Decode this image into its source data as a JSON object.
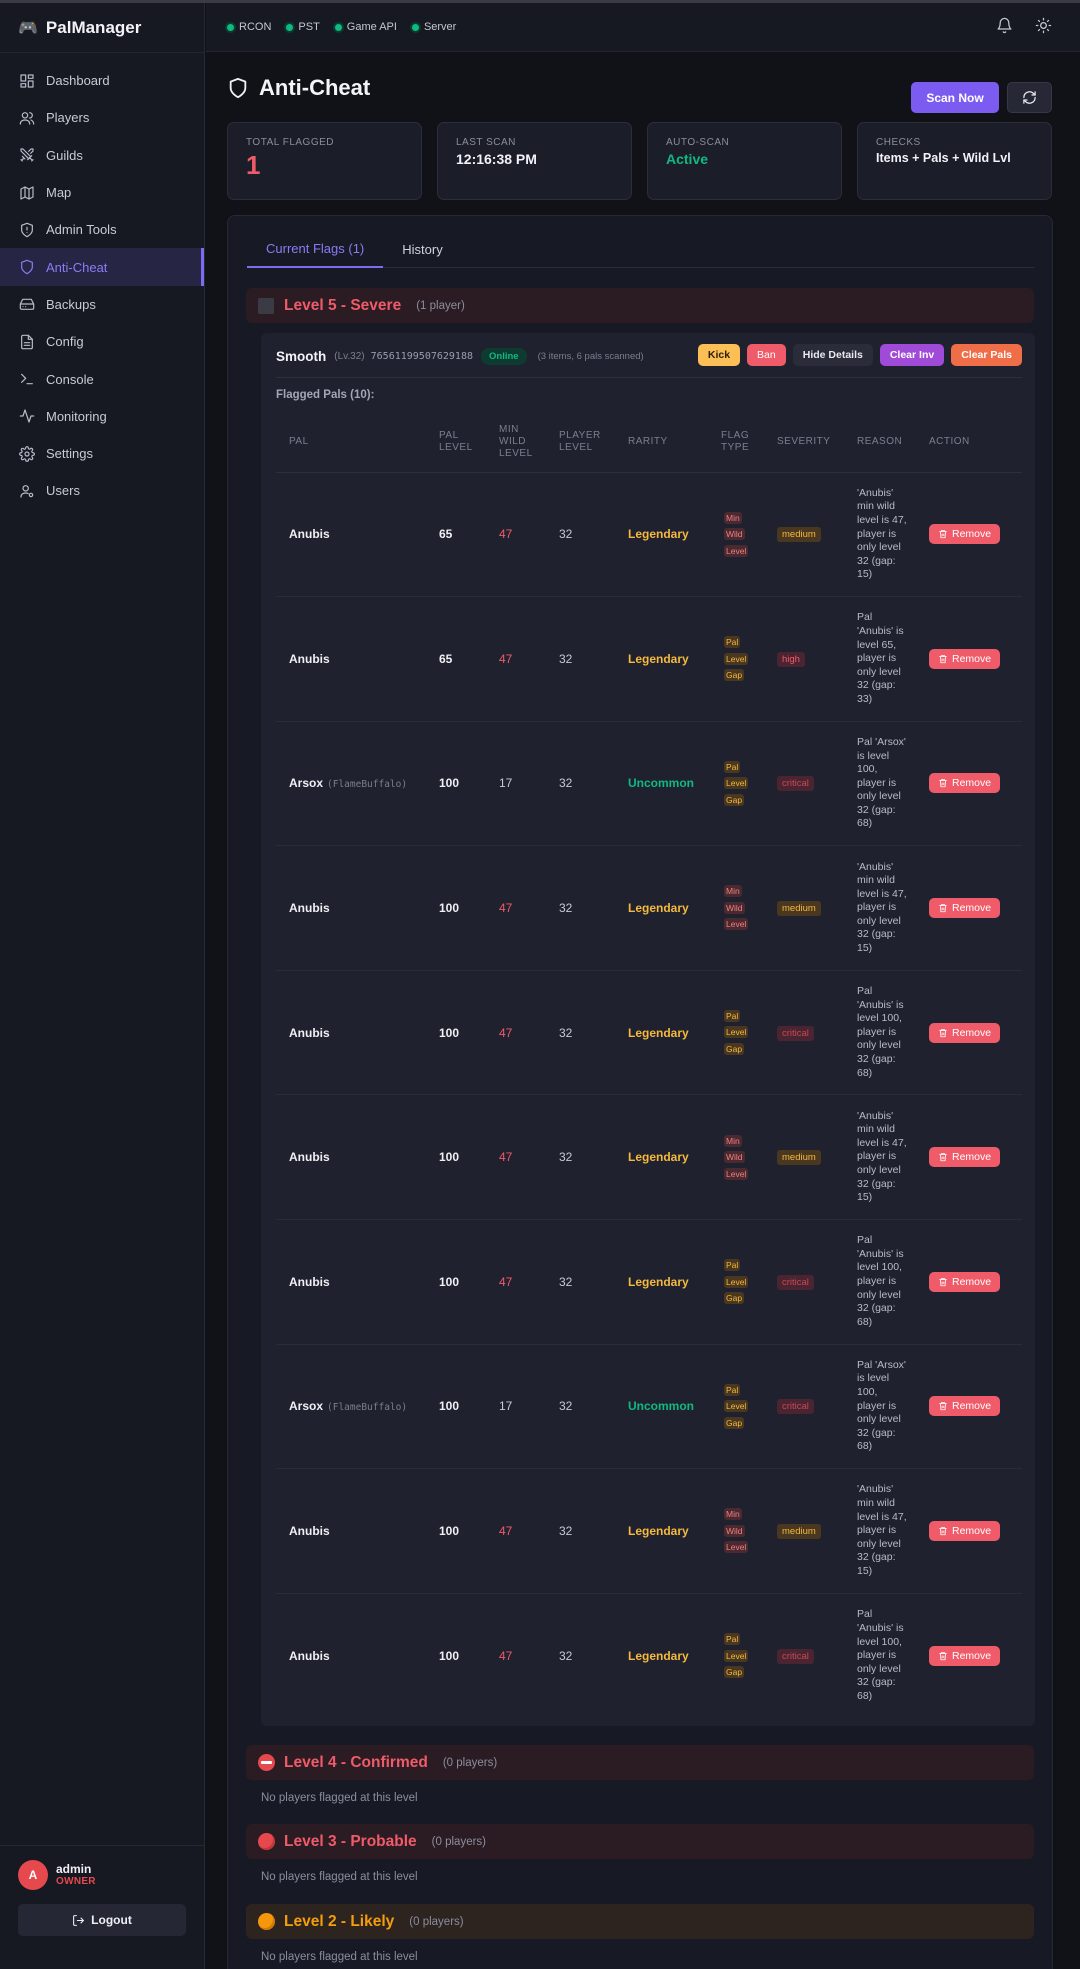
{
  "app": {
    "name": "PalManager"
  },
  "sidebar": {
    "items": [
      {
        "label": "Dashboard",
        "icon": "dashboard-icon"
      },
      {
        "label": "Players",
        "icon": "users-icon"
      },
      {
        "label": "Guilds",
        "icon": "swords-icon"
      },
      {
        "label": "Map",
        "icon": "map-icon"
      },
      {
        "label": "Admin Tools",
        "icon": "shield-icon"
      },
      {
        "label": "Anti-Cheat",
        "icon": "shield-icon",
        "active": true
      },
      {
        "label": "Backups",
        "icon": "drive-icon"
      },
      {
        "label": "Config",
        "icon": "file-icon"
      },
      {
        "label": "Console",
        "icon": "terminal-icon"
      },
      {
        "label": "Monitoring",
        "icon": "activity-icon"
      },
      {
        "label": "Settings",
        "icon": "gear-icon"
      },
      {
        "label": "Users",
        "icon": "user-cog-icon"
      }
    ],
    "user": {
      "initial": "A",
      "name": "admin",
      "role": "OWNER"
    },
    "logout_label": "Logout"
  },
  "topbar": {
    "statuses": [
      "RCON",
      "PST",
      "Game API",
      "Server"
    ]
  },
  "page": {
    "title": "Anti-Cheat",
    "scan_label": "Scan Now",
    "cards": [
      {
        "label": "Total Flagged",
        "value": "1"
      },
      {
        "label": "Last Scan",
        "value": "12:16:38 PM"
      },
      {
        "label": "Auto-Scan",
        "value": "Active"
      },
      {
        "label": "Checks",
        "value": "Items + Pals + Wild Lvl"
      }
    ],
    "tabs": [
      "Current Flags (1)",
      "History"
    ]
  },
  "levels": [
    {
      "title": "Level 5 - Severe",
      "count": "(1 player)"
    },
    {
      "title": "Level 4 - Confirmed",
      "count": "(0 players)",
      "empty": "No players flagged at this level"
    },
    {
      "title": "Level 3 - Probable",
      "count": "(0 players)",
      "empty": "No players flagged at this level"
    },
    {
      "title": "Level 2 - Likely",
      "count": "(0 players)",
      "empty": "No players flagged at this level"
    }
  ],
  "player": {
    "name": "Smooth",
    "level": "(Lv.32)",
    "steam_id": "76561199507629188",
    "status": "Online",
    "info": "(3 items, 6 pals scanned)",
    "buttons": {
      "kick": "Kick",
      "ban": "Ban",
      "hide": "Hide Details",
      "clear_inv": "Clear Inv",
      "clear_pals": "Clear Pals"
    },
    "flagged_label": "Flagged Pals (10):"
  },
  "table": {
    "headers": [
      "Pal",
      "Pal Level",
      "Min Wild Level",
      "Player Level",
      "Rarity",
      "Flag Type",
      "Severity",
      "Reason",
      "Action"
    ],
    "remove_label": "Remove",
    "rows": [
      {
        "pal": "Anubis",
        "alias": "",
        "pal_level": "65",
        "min_wild": "47",
        "player_level": "32",
        "rarity": "Legendary",
        "flag": [
          "Min",
          "Wild",
          "Level"
        ],
        "severity": "medium",
        "reason": "'Anubis' min wild level is 47, player is only level 32 (gap: 15)"
      },
      {
        "pal": "Anubis",
        "alias": "",
        "pal_level": "65",
        "min_wild": "47",
        "player_level": "32",
        "rarity": "Legendary",
        "flag": [
          "Pal",
          "Level",
          "Gap"
        ],
        "severity": "high",
        "reason": "Pal 'Anubis' is level 65, player is only level 32 (gap: 33)"
      },
      {
        "pal": "Arsox",
        "alias": "(FlameBuffalo)",
        "pal_level": "100",
        "min_wild": "17",
        "player_level": "32",
        "rarity": "Uncommon",
        "flag": [
          "Pal",
          "Level",
          "Gap"
        ],
        "severity": "critical",
        "reason": "Pal 'Arsox' is level 100, player is only level 32 (gap: 68)"
      },
      {
        "pal": "Anubis",
        "alias": "",
        "pal_level": "100",
        "min_wild": "47",
        "player_level": "32",
        "rarity": "Legendary",
        "flag": [
          "Min",
          "Wild",
          "Level"
        ],
        "severity": "medium",
        "reason": "'Anubis' min wild level is 47, player is only level 32 (gap: 15)"
      },
      {
        "pal": "Anubis",
        "alias": "",
        "pal_level": "100",
        "min_wild": "47",
        "player_level": "32",
        "rarity": "Legendary",
        "flag": [
          "Pal",
          "Level",
          "Gap"
        ],
        "severity": "critical",
        "reason": "Pal 'Anubis' is level 100, player is only level 32 (gap: 68)"
      },
      {
        "pal": "Anubis",
        "alias": "",
        "pal_level": "100",
        "min_wild": "47",
        "player_level": "32",
        "rarity": "Legendary",
        "flag": [
          "Min",
          "Wild",
          "Level"
        ],
        "severity": "medium",
        "reason": "'Anubis' min wild level is 47, player is only level 32 (gap: 15)"
      },
      {
        "pal": "Anubis",
        "alias": "",
        "pal_level": "100",
        "min_wild": "47",
        "player_level": "32",
        "rarity": "Legendary",
        "flag": [
          "Pal",
          "Level",
          "Gap"
        ],
        "severity": "critical",
        "reason": "Pal 'Anubis' is level 100, player is only level 32 (gap: 68)"
      },
      {
        "pal": "Arsox",
        "alias": "(FlameBuffalo)",
        "pal_level": "100",
        "min_wild": "17",
        "player_level": "32",
        "rarity": "Uncommon",
        "flag": [
          "Pal",
          "Level",
          "Gap"
        ],
        "severity": "critical",
        "reason": "Pal 'Arsox' is level 100, player is only level 32 (gap: 68)"
      },
      {
        "pal": "Anubis",
        "alias": "",
        "pal_level": "100",
        "min_wild": "47",
        "player_level": "32",
        "rarity": "Legendary",
        "flag": [
          "Min",
          "Wild",
          "Level"
        ],
        "severity": "medium",
        "reason": "'Anubis' min wild level is 47, player is only level 32 (gap: 15)"
      },
      {
        "pal": "Anubis",
        "alias": "",
        "pal_level": "100",
        "min_wild": "47",
        "player_level": "32",
        "rarity": "Legendary",
        "flag": [
          "Pal",
          "Level",
          "Gap"
        ],
        "severity": "critical",
        "reason": "Pal 'Anubis' is level 100, player is only level 32 (gap: 68)"
      }
    ]
  }
}
